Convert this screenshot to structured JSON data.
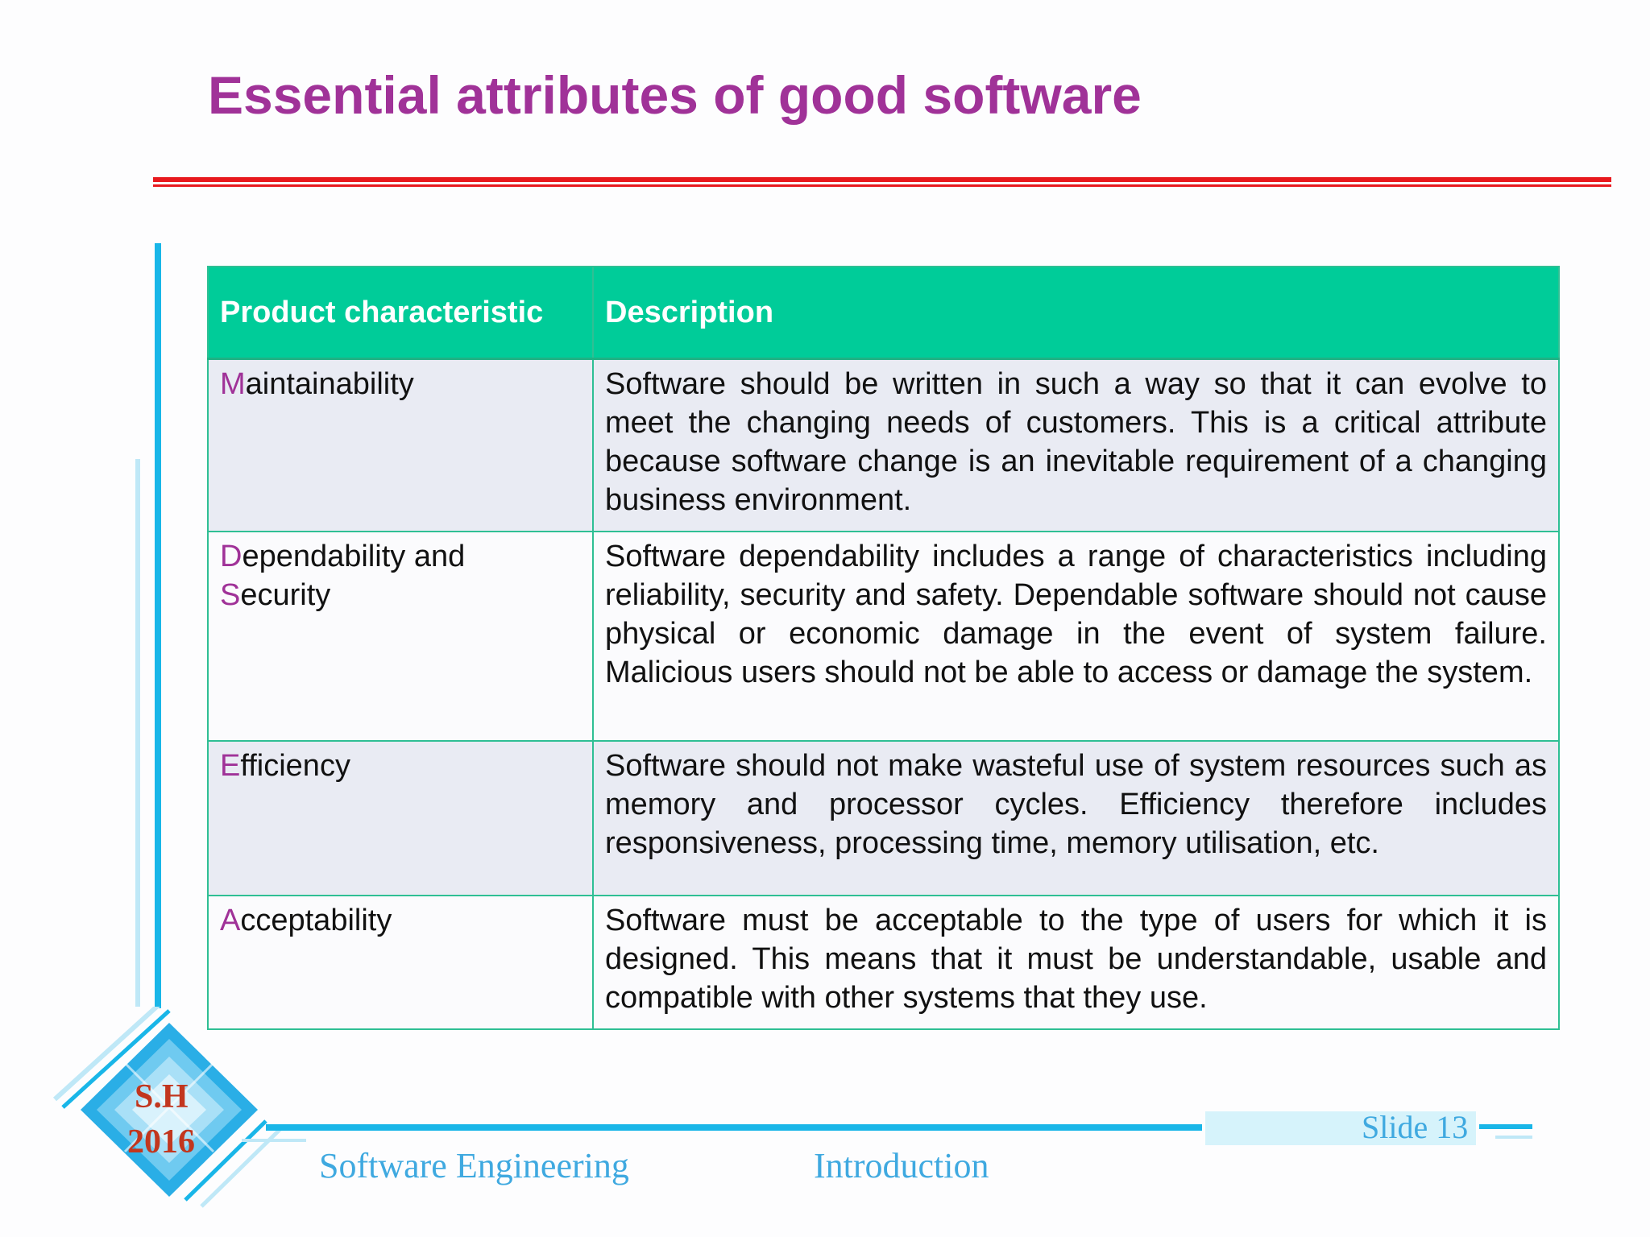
{
  "slide": {
    "title": "Essential attributes of good software"
  },
  "table": {
    "headers": [
      "Product characteristic",
      "Description"
    ],
    "rows": [
      {
        "initial": "M",
        "rest": "aintainability",
        "description": "Software should be written in such a way so that it can evolve to meet the changing needs of customers. This is a critical attribute because software change is an inevitable requirement of a changing business environment."
      },
      {
        "initial": "D",
        "rest": "ependability and",
        "initial2": "S",
        "rest2": "ecurity",
        "description": "Software dependability includes a range of characteristics including reliability, security and safety. Dependable software should not cause physical or economic damage in the event of system failure. Malicious users should not be able to access or damage the system."
      },
      {
        "initial": "E",
        "rest": "fficiency",
        "description": "Software should not make wasteful use of system resources such as memory and processor cycles. Efficiency therefore includes responsiveness, processing time, memory utilisation, etc."
      },
      {
        "initial": "A",
        "rest": "cceptability",
        "description": "Software must be acceptable to the type of users for which it is designed. This means that it must be understandable, usable and compatible with other systems that they use."
      }
    ]
  },
  "footer": {
    "course": "Software Engineering",
    "chapter": "Introduction",
    "slide_number": "Slide 13",
    "logo_line1": "S.H",
    "logo_line2": "2016"
  },
  "colors": {
    "title": "#a03298",
    "header_bg": "#00cc99",
    "rule": "#e8191e",
    "accent_blue": "#19b6e8"
  }
}
